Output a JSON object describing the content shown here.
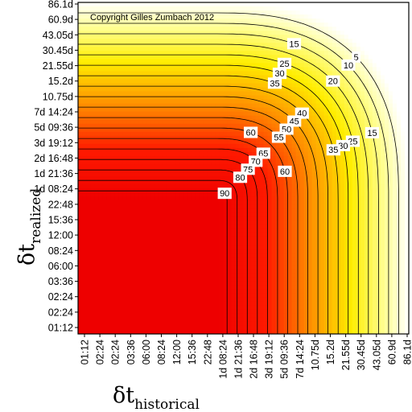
{
  "chart_data": {
    "type": "heatmap",
    "subtype": "contour",
    "annotation": "Copyright Gilles Zumbach 2012",
    "xlabel": {
      "main": "δt",
      "sub": "historical"
    },
    "ylabel": {
      "main": "δt",
      "sub": "realized"
    },
    "x_ticks": [
      "01:12",
      "02:24",
      "02:24",
      "03:36",
      "06:00",
      "08:24",
      "12:00",
      "15:36",
      "22:48",
      "1d 08:24",
      "1d 21:36",
      "2d 16:48",
      "3d 19:12",
      "5d 09:36",
      "7d 14:24",
      "10.75d",
      "15.2d",
      "21.55d",
      "30.45d",
      "43.05d",
      "60.9d",
      "86.1d"
    ],
    "y_ticks": [
      "01:12",
      "02:24",
      "02:24",
      "03:36",
      "06:00",
      "08:24",
      "12:00",
      "15:36",
      "22:48",
      "1d 08:24",
      "1d 21:36",
      "2d 16:48",
      "3d 19:12",
      "5d 09:36",
      "7d 14:24",
      "10.75d",
      "15.2d",
      "21.55d",
      "30.45d",
      "43.05d",
      "60.9d",
      "86.1d"
    ],
    "contour_levels": [
      5,
      10,
      15,
      20,
      25,
      30,
      35,
      40,
      45,
      50,
      55,
      60,
      65,
      70,
      75,
      80,
      85,
      90
    ],
    "value_range": [
      0,
      95
    ],
    "colormap": [
      "#ffffff",
      "#ffff99",
      "#ffee00",
      "#ff8c00",
      "#ff1a00",
      "#ee0000"
    ],
    "contour_labels": [
      {
        "text": "5",
        "level": 5
      },
      {
        "text": "10",
        "level": 10
      },
      {
        "text": "15",
        "level": 15
      },
      {
        "text": "15",
        "level": 15
      },
      {
        "text": "20",
        "level": 20
      },
      {
        "text": "25",
        "level": 25
      },
      {
        "text": "25",
        "level": 25
      },
      {
        "text": "30",
        "level": 30
      },
      {
        "text": "30",
        "level": 30
      },
      {
        "text": "35",
        "level": 35
      },
      {
        "text": "35",
        "level": 35
      },
      {
        "text": "40",
        "level": 40
      },
      {
        "text": "45",
        "level": 45
      },
      {
        "text": "50",
        "level": 50
      },
      {
        "text": "55",
        "level": 55
      },
      {
        "text": "60",
        "level": 60
      },
      {
        "text": "60",
        "level": 60
      },
      {
        "text": "65",
        "level": 65
      },
      {
        "text": "70",
        "level": 70
      },
      {
        "text": "75",
        "level": 75
      },
      {
        "text": "80",
        "level": 80
      },
      {
        "text": "90",
        "level": 90
      }
    ]
  }
}
